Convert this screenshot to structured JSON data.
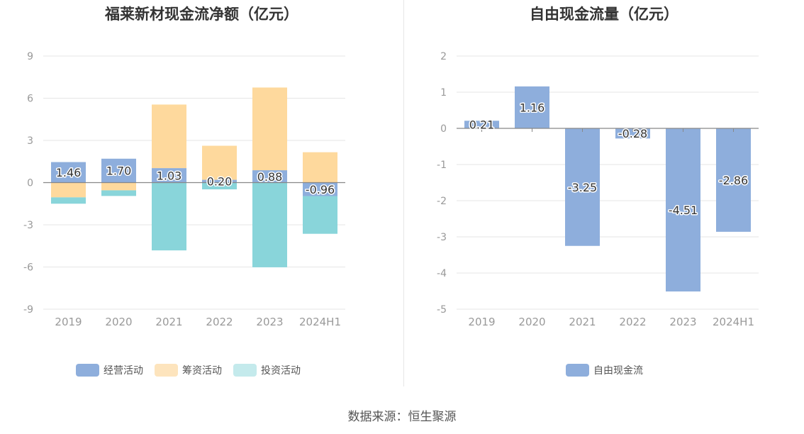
{
  "source": "数据来源：恒生聚源",
  "chart_data": [
    {
      "type": "bar",
      "stacked": true,
      "title": "福莱新材现金流净额（亿元）",
      "categories": [
        "2019",
        "2020",
        "2021",
        "2022",
        "2023",
        "2024H1"
      ],
      "ylim": [
        -9,
        9
      ],
      "yticks": [
        9,
        6,
        3,
        0,
        -3,
        -6,
        -9
      ],
      "series": [
        {
          "name": "经营活动",
          "color": "#8eaedc",
          "values": [
            1.46,
            1.7,
            1.03,
            0.2,
            0.88,
            -0.96
          ],
          "labels": [
            "1.46",
            "1.70",
            "1.03",
            "0.20",
            "0.88",
            "-0.96"
          ]
        },
        {
          "name": "筹资活动",
          "color": "#fed99d",
          "values": [
            -1.05,
            -0.55,
            4.52,
            2.42,
            5.88,
            2.16
          ]
        },
        {
          "name": "投资活动",
          "color": "#89d5da",
          "values": [
            -0.45,
            -0.4,
            -4.82,
            -0.48,
            -6.02,
            -2.68
          ]
        }
      ],
      "legend": [
        {
          "name": "经营活动",
          "color": "#8eaedc"
        },
        {
          "name": "筹资活动",
          "color": "#fde4bd"
        },
        {
          "name": "投资活动",
          "color": "#c4eaec"
        }
      ]
    },
    {
      "type": "bar",
      "title": "自由现金流量（亿元）",
      "categories": [
        "2019",
        "2020",
        "2021",
        "2022",
        "2023",
        "2024H1"
      ],
      "ylim": [
        -5,
        2
      ],
      "yticks": [
        2,
        1,
        0,
        -1,
        -2,
        -3,
        -4,
        -5
      ],
      "series": [
        {
          "name": "自由现金流",
          "color": "#8eaedc",
          "values": [
            0.21,
            1.16,
            -3.25,
            -0.28,
            -4.51,
            -2.86
          ],
          "labels": [
            "0.21",
            "1.16",
            "-3.25",
            "-0.28",
            "-4.51",
            "-2.86"
          ]
        }
      ],
      "legend": [
        {
          "name": "自由现金流",
          "color": "#8eaedc"
        }
      ]
    }
  ]
}
